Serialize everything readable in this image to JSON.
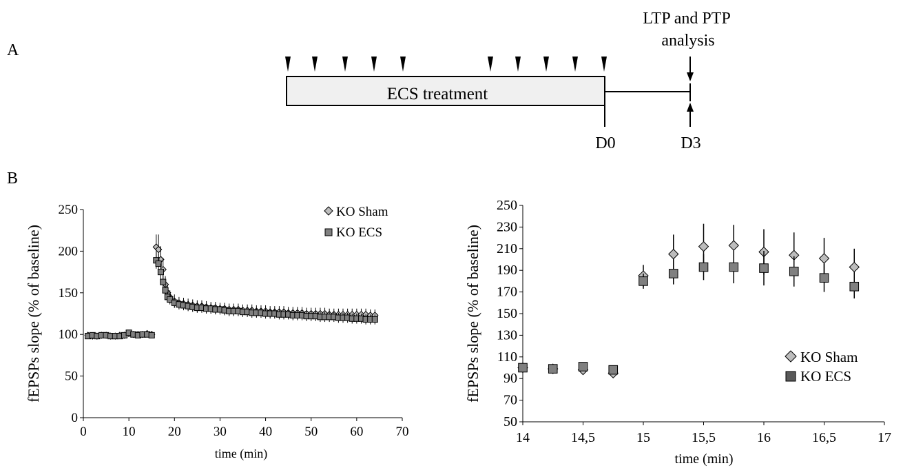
{
  "panel_a": {
    "label": "A",
    "treatment_label": "ECS treatment",
    "analysis_label_line1": "LTP and PTP",
    "analysis_label_line2": "analysis",
    "day0_label": "D0",
    "day3_label": "D3",
    "stimulus_count": 10
  },
  "panel_b": {
    "label": "B"
  },
  "colors": {
    "sham_fill": "#bdbdbd",
    "ecs_fill": "#808080",
    "stroke": "#000000",
    "box_fill": "#f0f0f0"
  },
  "chart_data": [
    {
      "type": "scatter",
      "xlabel": "time (min)",
      "ylabel": "fEPSPs slope (% of baseline)",
      "xlim": [
        0,
        70
      ],
      "ylim": [
        0,
        250
      ],
      "xticks": [
        0,
        10,
        20,
        30,
        40,
        50,
        60,
        70
      ],
      "yticks": [
        0,
        50,
        100,
        150,
        200,
        250
      ],
      "xtick_labels": [
        "0",
        "10",
        "20",
        "30",
        "40",
        "50",
        "60",
        "70"
      ],
      "ytick_labels": [
        "0",
        "50",
        "100",
        "150",
        "200",
        "250"
      ],
      "legend_position": "top-right",
      "series": [
        {
          "name": "KO Sham",
          "marker": "diamond",
          "x": [
            1,
            2,
            3,
            4,
            5,
            6,
            7,
            8,
            9,
            10,
            11,
            12,
            13,
            14,
            15,
            16,
            16.5,
            17,
            17.5,
            18,
            18.5,
            19,
            20,
            21,
            22,
            23,
            24,
            25,
            26,
            27,
            28,
            29,
            30,
            31,
            32,
            33,
            34,
            35,
            36,
            37,
            38,
            39,
            40,
            41,
            42,
            43,
            44,
            45,
            46,
            47,
            48,
            49,
            50,
            51,
            52,
            53,
            54,
            55,
            56,
            57,
            58,
            59,
            60,
            61,
            62,
            63,
            64
          ],
          "y": [
            99,
            98,
            98,
            99,
            99,
            98,
            98,
            99,
            99,
            101,
            100,
            100,
            100,
            101,
            100,
            205,
            202,
            190,
            178,
            160,
            150,
            145,
            140,
            138,
            137,
            136,
            135,
            134,
            134,
            133,
            132,
            132,
            131,
            131,
            130,
            130,
            130,
            129,
            129,
            129,
            128,
            128,
            128,
            127,
            127,
            127,
            127,
            126,
            126,
            126,
            126,
            125,
            125,
            125,
            125,
            125,
            124,
            124,
            124,
            124,
            124,
            124,
            124,
            124,
            124,
            123,
            123
          ],
          "err": [
            3,
            3,
            3,
            3,
            3,
            3,
            3,
            3,
            3,
            3,
            3,
            3,
            3,
            3,
            3,
            15,
            18,
            16,
            14,
            10,
            9,
            8,
            8,
            7,
            7,
            7,
            7,
            7,
            7,
            7,
            7,
            7,
            7,
            7,
            7,
            7,
            7,
            7,
            7,
            7,
            7,
            7,
            7,
            7,
            7,
            7,
            7,
            7,
            7,
            7,
            7,
            7,
            7,
            7,
            7,
            7,
            7,
            7,
            7,
            7,
            7,
            7,
            7,
            7,
            7,
            7,
            7
          ]
        },
        {
          "name": "KO ECS",
          "marker": "square",
          "x": [
            1,
            2,
            3,
            4,
            5,
            6,
            7,
            8,
            9,
            10,
            11,
            12,
            13,
            14,
            15,
            16,
            16.5,
            17,
            17.5,
            18,
            18.5,
            19,
            20,
            21,
            22,
            23,
            24,
            25,
            26,
            27,
            28,
            29,
            30,
            31,
            32,
            33,
            34,
            35,
            36,
            37,
            38,
            39,
            40,
            41,
            42,
            43,
            44,
            45,
            46,
            47,
            48,
            49,
            50,
            51,
            52,
            53,
            54,
            55,
            56,
            57,
            58,
            59,
            60,
            61,
            62,
            63,
            64
          ],
          "y": [
            98,
            99,
            98,
            99,
            99,
            98,
            98,
            98,
            99,
            102,
            100,
            99,
            100,
            100,
            99,
            189,
            185,
            175,
            163,
            153,
            145,
            142,
            138,
            136,
            135,
            134,
            133,
            132,
            132,
            131,
            131,
            130,
            130,
            129,
            128,
            128,
            128,
            127,
            127,
            126,
            126,
            126,
            125,
            125,
            125,
            124,
            124,
            124,
            123,
            123,
            123,
            122,
            122,
            122,
            121,
            121,
            121,
            121,
            120,
            120,
            120,
            119,
            119,
            119,
            118,
            118,
            118
          ],
          "err": [
            3,
            3,
            3,
            3,
            3,
            3,
            3,
            3,
            3,
            3,
            3,
            3,
            3,
            3,
            3,
            10,
            12,
            10,
            8,
            6,
            6,
            6,
            6,
            6,
            6,
            6,
            6,
            6,
            6,
            6,
            6,
            6,
            6,
            6,
            6,
            6,
            6,
            6,
            6,
            6,
            6,
            6,
            6,
            6,
            6,
            6,
            6,
            6,
            6,
            6,
            6,
            6,
            6,
            6,
            6,
            6,
            6,
            6,
            6,
            6,
            6,
            6,
            6,
            6,
            6,
            6,
            6
          ]
        }
      ]
    },
    {
      "type": "scatter",
      "xlabel": "time (min)",
      "ylabel": "fEPSPs slope (% of baseline)",
      "xlim": [
        14,
        17
      ],
      "ylim": [
        50,
        250
      ],
      "xticks": [
        14,
        14.5,
        15,
        15.5,
        16,
        16.5,
        17
      ],
      "xtick_labels": [
        "14",
        "14,5",
        "15",
        "15,5",
        "16",
        "16,5",
        "17"
      ],
      "yticks": [
        50,
        70,
        90,
        110,
        130,
        150,
        170,
        190,
        210,
        230,
        250
      ],
      "ytick_labels": [
        "50",
        "70",
        "90",
        "110",
        "130",
        "150",
        "170",
        "190",
        "210",
        "230",
        "250"
      ],
      "legend_position": "middle-right",
      "series": [
        {
          "name": "KO Sham",
          "marker": "diamond",
          "x": [
            14,
            14.25,
            14.5,
            14.75,
            15,
            15.25,
            15.5,
            15.75,
            16,
            16.25,
            16.5,
            16.75
          ],
          "y": [
            100,
            99,
            98,
            95,
            185,
            205,
            212,
            213,
            207,
            204,
            201,
            193
          ],
          "err": [
            2,
            2,
            2,
            3,
            10,
            18,
            21,
            19,
            21,
            21,
            19,
            17
          ]
        },
        {
          "name": "KO ECS",
          "marker": "square",
          "x": [
            14,
            14.25,
            14.5,
            14.75,
            15,
            15.25,
            15.5,
            15.75,
            16,
            16.25,
            16.5,
            16.75
          ],
          "y": [
            100,
            99,
            101,
            98,
            180,
            187,
            193,
            193,
            192,
            189,
            183,
            175
          ],
          "err": [
            2,
            2,
            2,
            3,
            7,
            10,
            12,
            15,
            16,
            14,
            13,
            11
          ]
        }
      ]
    }
  ]
}
